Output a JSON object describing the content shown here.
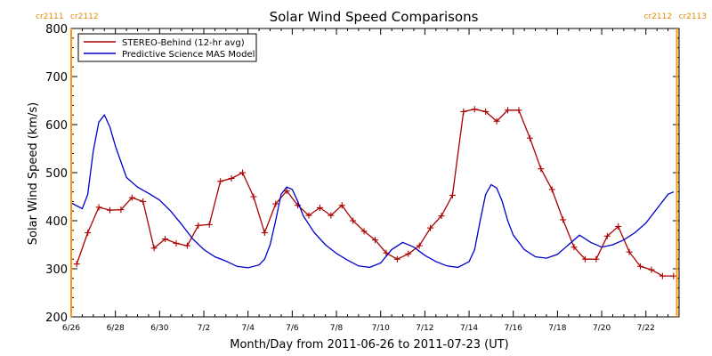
{
  "chart_data": {
    "type": "line",
    "title": "Solar Wind Speed Comparisons",
    "xlabel": "Month/Day from 2011-06-26 to 2011-07-23 (UT)",
    "ylabel": "Solar Wind Speed (km/s)",
    "xlim": [
      0,
      27.5
    ],
    "ylim": [
      200,
      800
    ],
    "yticks": [
      200,
      300,
      400,
      500,
      600,
      700,
      800
    ],
    "xticks": [
      {
        "x": 0,
        "label": "6/26"
      },
      {
        "x": 2,
        "label": "6/28"
      },
      {
        "x": 4,
        "label": "6/30"
      },
      {
        "x": 6,
        "label": "7/2"
      },
      {
        "x": 8,
        "label": "7/4"
      },
      {
        "x": 10,
        "label": "7/6"
      },
      {
        "x": 12,
        "label": "7/8"
      },
      {
        "x": 14,
        "label": "7/10"
      },
      {
        "x": 16,
        "label": "7/12"
      },
      {
        "x": 18,
        "label": "7/14"
      },
      {
        "x": 20,
        "label": "7/16"
      },
      {
        "x": 22,
        "label": "7/18"
      },
      {
        "x": 24,
        "label": "7/20"
      },
      {
        "x": 26,
        "label": "7/22"
      }
    ],
    "grid": false,
    "legend_position": "top-left",
    "carrington_markers": [
      {
        "x": 0,
        "label_left": "cr2111",
        "label_right": "cr2112",
        "align": "left"
      },
      {
        "x": 27.4,
        "label_left": "cr2112",
        "label_right": "cr2113",
        "align": "right"
      }
    ],
    "series": [
      {
        "name": "STEREO-Behind (12-hr avg)",
        "color": "#aa0000",
        "marker": "plus",
        "x": [
          0.25,
          0.75,
          1.25,
          1.75,
          2.25,
          2.75,
          3.25,
          3.75,
          4.25,
          4.75,
          5.25,
          5.75,
          6.25,
          6.75,
          7.25,
          7.75,
          8.25,
          8.75,
          9.25,
          9.75,
          10.25,
          10.75,
          11.25,
          11.75,
          12.25,
          12.75,
          13.25,
          13.75,
          14.25,
          14.75,
          15.25,
          15.75,
          16.25,
          16.75,
          17.25,
          17.75,
          18.25,
          18.75,
          19.25,
          19.75,
          20.25,
          20.75,
          21.25,
          21.75,
          22.25,
          22.75,
          23.25,
          23.75,
          24.25,
          24.75,
          25.25,
          25.75,
          26.25,
          26.75,
          27.25
        ],
        "y": [
          310,
          375,
          428,
          422,
          423,
          448,
          440,
          343,
          362,
          353,
          348,
          390,
          392,
          482,
          488,
          500,
          450,
          375,
          435,
          462,
          432,
          411,
          427,
          411,
          432,
          400,
          378,
          360,
          333,
          320,
          331,
          348,
          385,
          410,
          453,
          627,
          632,
          627,
          607,
          630,
          630,
          572,
          508,
          465,
          402,
          345,
          320,
          320,
          368,
          388,
          335,
          305,
          298,
          285,
          285
        ]
      },
      {
        "name": "Predictive Science MAS Model",
        "color": "#0000cc",
        "marker": "none",
        "x": [
          0,
          0.5,
          0.75,
          1,
          1.25,
          1.5,
          1.75,
          2,
          2.5,
          3,
          3.5,
          4,
          4.5,
          5,
          5.5,
          6,
          6.5,
          7,
          7.5,
          8,
          8.5,
          8.75,
          9,
          9.25,
          9.5,
          9.75,
          10,
          10.25,
          10.5,
          11,
          11.5,
          12,
          12.5,
          13,
          13.5,
          14,
          14.5,
          15,
          15.5,
          16,
          16.5,
          17,
          17.5,
          18,
          18.25,
          18.5,
          18.75,
          19,
          19.25,
          19.5,
          19.75,
          20,
          20.5,
          21,
          21.5,
          22,
          22.5,
          23,
          23.5,
          24,
          24.5,
          25,
          25.5,
          26,
          26.5,
          27,
          27.25
        ],
        "y": [
          437,
          425,
          455,
          545,
          605,
          620,
          595,
          555,
          490,
          470,
          457,
          443,
          420,
          392,
          362,
          340,
          325,
          316,
          305,
          302,
          308,
          320,
          350,
          400,
          455,
          470,
          465,
          440,
          410,
          375,
          350,
          332,
          318,
          306,
          303,
          312,
          340,
          355,
          345,
          328,
          315,
          306,
          303,
          315,
          340,
          400,
          455,
          475,
          468,
          440,
          400,
          370,
          340,
          325,
          322,
          330,
          350,
          370,
          355,
          345,
          350,
          360,
          375,
          395,
          425,
          455,
          460
        ]
      }
    ]
  }
}
